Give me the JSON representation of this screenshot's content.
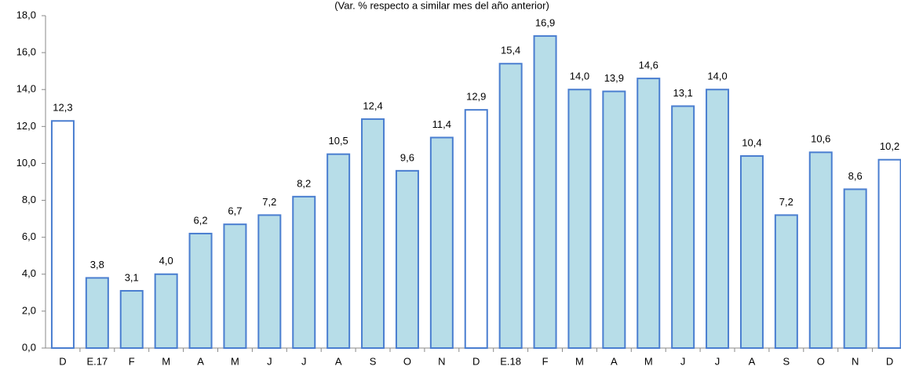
{
  "chart_data": {
    "type": "bar",
    "subtitle": "(Var. % respecto a similar mes del año anterior)",
    "categories": [
      "D",
      "E.17",
      "F",
      "M",
      "A",
      "M",
      "J",
      "J",
      "A",
      "S",
      "O",
      "N",
      "D",
      "E.18",
      "F",
      "M",
      "A",
      "M",
      "J",
      "J",
      "A",
      "S",
      "O",
      "N",
      "D"
    ],
    "values": [
      12.3,
      3.8,
      3.1,
      4.0,
      6.2,
      6.7,
      7.2,
      8.2,
      10.5,
      12.4,
      9.6,
      11.4,
      12.9,
      15.4,
      16.9,
      14.0,
      13.9,
      14.6,
      13.1,
      14.0,
      10.4,
      7.2,
      10.6,
      8.6,
      10.2
    ],
    "value_labels": [
      "12,3",
      "3,8",
      "3,1",
      "4,0",
      "6,2",
      "6,7",
      "7,2",
      "8,2",
      "10,5",
      "12,4",
      "9,6",
      "11,4",
      "12,9",
      "15,4",
      "16,9",
      "14,0",
      "13,9",
      "14,6",
      "13,1",
      "14,0",
      "10,4",
      "7,2",
      "10,6",
      "8,6",
      "10,2"
    ],
    "colors": [
      "#ffffff",
      "#b7dde8",
      "#b7dde8",
      "#b7dde8",
      "#b7dde8",
      "#b7dde8",
      "#b7dde8",
      "#b7dde8",
      "#b7dde8",
      "#b7dde8",
      "#b7dde8",
      "#b7dde8",
      "#ffffff",
      "#b7dde8",
      "#b7dde8",
      "#b7dde8",
      "#b7dde8",
      "#b7dde8",
      "#b7dde8",
      "#b7dde8",
      "#b7dde8",
      "#b7dde8",
      "#b7dde8",
      "#b7dde8",
      "#ffffff"
    ],
    "border_color": "#4a7ed0",
    "ylim": [
      0,
      18
    ],
    "yticks": [
      {
        "value": 0,
        "label": "0,0"
      },
      {
        "value": 2,
        "label": "2,0"
      },
      {
        "value": 4,
        "label": "4,0"
      },
      {
        "value": 6,
        "label": "6,0"
      },
      {
        "value": 8,
        "label": "8,0"
      },
      {
        "value": 10,
        "label": "10,0"
      },
      {
        "value": 12,
        "label": "12,0"
      },
      {
        "value": 14,
        "label": "14,0"
      },
      {
        "value": 16,
        "label": "16,0"
      },
      {
        "value": 18,
        "label": "18,0"
      }
    ],
    "grid": false
  }
}
